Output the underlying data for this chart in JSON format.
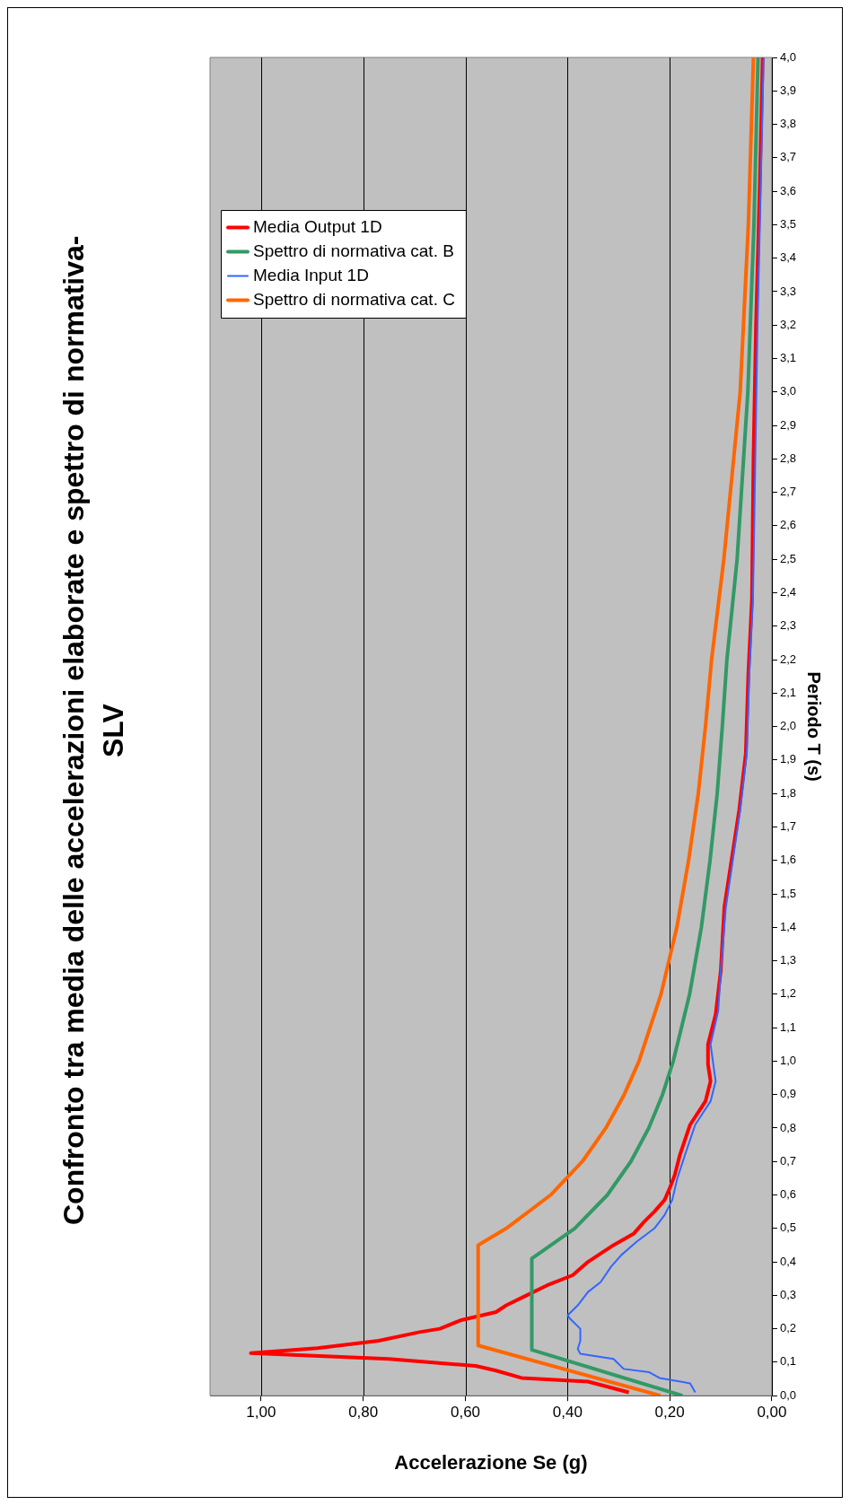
{
  "chart_data": {
    "type": "line",
    "title": "Confronto tra media delle accelerazioni elaborate e spettro di normativa- SLV",
    "xlabel": "Accelerazione Se (g)",
    "ylabel": "Periodo T (s)",
    "ylim": [
      0,
      4
    ],
    "yticks": [
      {
        "value": 0,
        "label": "0,0"
      },
      {
        "value": 0.1,
        "label": "0,1"
      },
      {
        "value": 0.2,
        "label": "0,2"
      },
      {
        "value": 0.3,
        "label": "0,3"
      },
      {
        "value": 0.4,
        "label": "0,4"
      },
      {
        "value": 0.5,
        "label": "0,5"
      },
      {
        "value": 0.6,
        "label": "0,6"
      },
      {
        "value": 0.7,
        "label": "0,7"
      },
      {
        "value": 0.8,
        "label": "0,8"
      },
      {
        "value": 0.9,
        "label": "0,9"
      },
      {
        "value": 1,
        "label": "1,0"
      },
      {
        "value": 1.1,
        "label": "1,1"
      },
      {
        "value": 1.2,
        "label": "1,2"
      },
      {
        "value": 1.3,
        "label": "1,3"
      },
      {
        "value": 1.4,
        "label": "1,4"
      },
      {
        "value": 1.5,
        "label": "1,5"
      },
      {
        "value": 1.6,
        "label": "1,6"
      },
      {
        "value": 1.7,
        "label": "1,7"
      },
      {
        "value": 1.8,
        "label": "1,8"
      },
      {
        "value": 1.9,
        "label": "1,9"
      },
      {
        "value": 2,
        "label": "2,0"
      },
      {
        "value": 2.1,
        "label": "2,1"
      },
      {
        "value": 2.2,
        "label": "2,2"
      },
      {
        "value": 2.3,
        "label": "2,3"
      },
      {
        "value": 2.4,
        "label": "2,4"
      },
      {
        "value": 2.5,
        "label": "2,5"
      },
      {
        "value": 2.6,
        "label": "2,6"
      },
      {
        "value": 2.7,
        "label": "2,7"
      },
      {
        "value": 2.8,
        "label": "2,8"
      },
      {
        "value": 2.9,
        "label": "2,9"
      },
      {
        "value": 3,
        "label": "3,0"
      },
      {
        "value": 3.1,
        "label": "3,1"
      },
      {
        "value": 3.2,
        "label": "3,2"
      },
      {
        "value": 3.3,
        "label": "3,3"
      },
      {
        "value": 3.4,
        "label": "3,4"
      },
      {
        "value": 3.5,
        "label": "3,5"
      },
      {
        "value": 3.6,
        "label": "3,6"
      },
      {
        "value": 3.7,
        "label": "3,7"
      },
      {
        "value": 3.8,
        "label": "3,8"
      },
      {
        "value": 3.9,
        "label": "3,9"
      },
      {
        "value": 4,
        "label": "4,0"
      }
    ],
    "xlim": [
      1.1,
      0
    ],
    "xticks": [
      {
        "value": 1,
        "label": "1,00"
      },
      {
        "value": 0.8,
        "label": "0,80"
      },
      {
        "value": 0.6,
        "label": "0,60"
      },
      {
        "value": 0.4,
        "label": "0,40"
      },
      {
        "value": 0.2,
        "label": "0,20"
      },
      {
        "value": 0,
        "label": "0,00"
      }
    ],
    "grid": "x",
    "legend": "top left",
    "marker": "none",
    "line_style": "solid",
    "series": [
      {
        "name": "Media Output 1D",
        "color": "#ff0000",
        "values": [
          0.01,
          0.042,
          0.053,
          0.075,
          0.089,
          0.11,
          0.127,
          0.142,
          0.164,
          0.19,
          0.2,
          0.225,
          0.25,
          0.27,
          0.3,
          0.33,
          0.36,
          0.4,
          0.42,
          0.45,
          0.485,
          0.52,
          0.55,
          0.585,
          0.62,
          0.66,
          0.72,
          0.81,
          0.88,
          0.94,
          0.99,
          1.05,
          1.14,
          1.27,
          1.46,
          1.75,
          1.92,
          2.16,
          2.38,
          2.8,
          3.2,
          3.6,
          4.0
        ],
        "x": [
          0.28,
          0.36,
          0.49,
          0.54,
          0.58,
          0.75,
          1.02,
          0.89,
          0.77,
          0.69,
          0.65,
          0.61,
          0.54,
          0.52,
          0.48,
          0.44,
          0.39,
          0.36,
          0.34,
          0.31,
          0.27,
          0.25,
          0.23,
          0.21,
          0.2,
          0.19,
          0.18,
          0.16,
          0.13,
          0.12,
          0.125,
          0.125,
          0.11,
          0.1,
          0.093,
          0.064,
          0.051,
          0.046,
          0.039,
          0.036,
          0.031,
          0.024,
          0.018
        ]
      },
      {
        "name": "Spettro di normativa cat. B",
        "color": "#339966",
        "values": [
          0,
          0.137,
          0.41,
          0.5,
          0.6,
          0.7,
          0.8,
          0.9,
          1.0,
          1.2,
          1.4,
          1.6,
          1.8,
          2.0,
          2.2,
          2.5,
          3.0,
          3.5,
          4.0
        ],
        "x": [
          0.175,
          0.47,
          0.47,
          0.386,
          0.322,
          0.276,
          0.241,
          0.214,
          0.193,
          0.161,
          0.138,
          0.121,
          0.107,
          0.097,
          0.088,
          0.068,
          0.047,
          0.035,
          0.027
        ]
      },
      {
        "name": "Media Input 1D",
        "color": "#3366ff",
        "values": [
          0.01,
          0.037,
          0.053,
          0.07,
          0.08,
          0.11,
          0.125,
          0.14,
          0.164,
          0.2,
          0.23,
          0.24,
          0.27,
          0.31,
          0.34,
          0.385,
          0.42,
          0.46,
          0.5,
          0.54,
          0.585,
          0.65,
          0.72,
          0.81,
          0.88,
          0.94,
          1.05,
          1.15,
          1.27,
          1.46,
          1.75,
          1.92,
          2.16,
          2.38,
          3.2,
          4.0
        ],
        "x": [
          0.15,
          0.16,
          0.22,
          0.24,
          0.29,
          0.31,
          0.375,
          0.38,
          0.375,
          0.375,
          0.395,
          0.4,
          0.38,
          0.36,
          0.335,
          0.315,
          0.295,
          0.265,
          0.23,
          0.21,
          0.195,
          0.185,
          0.17,
          0.15,
          0.12,
          0.11,
          0.12,
          0.105,
          0.1,
          0.09,
          0.062,
          0.049,
          0.044,
          0.037,
          0.028,
          0.016
        ]
      },
      {
        "name": "Spettro di normativa cat. C",
        "color": "#ff6600",
        "values": [
          0,
          0.15,
          0.45,
          0.5,
          0.6,
          0.7,
          0.8,
          0.9,
          1.0,
          1.2,
          1.4,
          1.6,
          1.8,
          2.0,
          2.2,
          2.5,
          3.0,
          3.5,
          4.0
        ],
        "x": [
          0.218,
          0.575,
          0.575,
          0.52,
          0.433,
          0.371,
          0.325,
          0.289,
          0.26,
          0.217,
          0.186,
          0.163,
          0.144,
          0.13,
          0.118,
          0.094,
          0.062,
          0.046,
          0.036
        ]
      }
    ]
  }
}
